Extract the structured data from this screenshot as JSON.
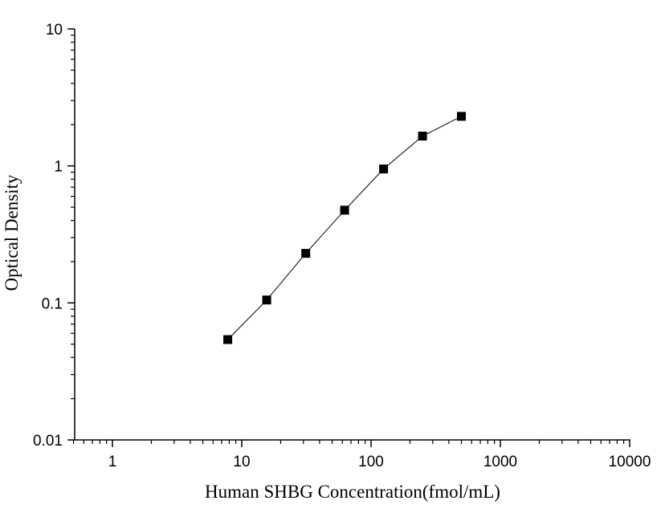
{
  "chart_data": {
    "type": "scatter",
    "title": "",
    "xlabel": "Human SHBG Concentration(fmol/mL)",
    "ylabel": "Optical Density",
    "xscale": "log",
    "yscale": "log",
    "xlim": [
      0.5,
      10000
    ],
    "ylim": [
      0.01,
      10
    ],
    "x_ticks": [
      1,
      10,
      100,
      1000,
      10000
    ],
    "x_tick_labels": [
      "1",
      "10",
      "100",
      "1000",
      "10000"
    ],
    "y_ticks": [
      0.01,
      0.1,
      1,
      10
    ],
    "y_tick_labels": [
      "0.01",
      "0.1",
      "1",
      "10"
    ],
    "grid": false,
    "legend": "none",
    "series": [
      {
        "marker": "square",
        "line": true,
        "color": "#000000",
        "x": [
          7.8,
          15.6,
          31.25,
          62.5,
          125,
          250,
          500
        ],
        "y": [
          0.054,
          0.105,
          0.23,
          0.475,
          0.95,
          1.65,
          2.3
        ]
      }
    ]
  }
}
